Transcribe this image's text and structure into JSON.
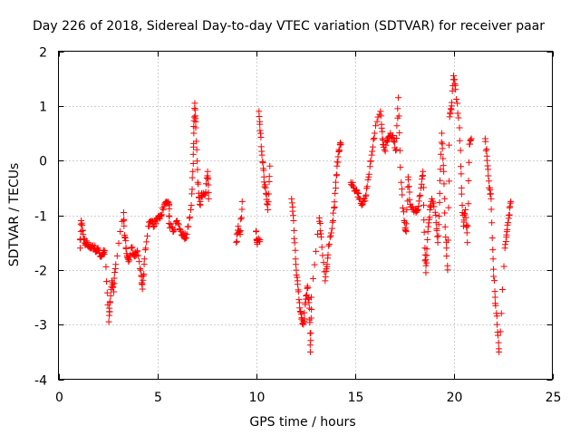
{
  "chart_data": {
    "type": "scatter",
    "title": "Day 226 of 2018, Sidereal Day-to-day VTEC variation (SDTVAR) for receiver paar",
    "xlabel": "GPS time / hours",
    "ylabel": "SDTVAR / TECUs",
    "xlim": [
      0,
      25
    ],
    "ylim": [
      -4,
      2
    ],
    "x_ticks": [
      0,
      5,
      10,
      15,
      20,
      25
    ],
    "x_tick_labels": [
      "0",
      "5",
      "10",
      "15",
      "20",
      "25"
    ],
    "y_ticks": [
      -4,
      -3,
      -2,
      -1,
      0,
      1,
      2
    ],
    "y_tick_labels": [
      "-4",
      "-3",
      "-2",
      "-1",
      "0",
      "1",
      "2"
    ],
    "grid": true,
    "marker": "plus",
    "color": "#ff0000",
    "segments": [
      [
        1.1,
        -1.6
      ],
      [
        1.15,
        -1.1
      ],
      [
        1.25,
        -1.35
      ],
      [
        1.35,
        -1.55
      ],
      [
        1.45,
        -1.5
      ],
      [
        1.6,
        -1.6
      ],
      [
        1.75,
        -1.55
      ],
      [
        1.9,
        -1.65
      ],
      [
        2.0,
        -1.6
      ],
      [
        2.1,
        -1.75
      ],
      [
        2.25,
        -1.7
      ],
      [
        2.35,
        -1.65
      ],
      [
        2.55,
        -2.95
      ],
      [
        2.6,
        -2.6
      ],
      [
        2.7,
        -2.2
      ],
      [
        2.8,
        -2.4
      ],
      [
        2.9,
        -1.9
      ],
      [
        3.3,
        -0.95
      ],
      [
        3.35,
        -1.4
      ],
      [
        3.45,
        -1.7
      ],
      [
        3.55,
        -1.85
      ],
      [
        3.7,
        -1.6
      ],
      [
        3.85,
        -1.75
      ],
      [
        4.0,
        -1.65
      ],
      [
        4.2,
        -2.1
      ],
      [
        4.25,
        -2.35
      ],
      [
        4.35,
        -1.8
      ],
      [
        4.55,
        -1.2
      ],
      [
        4.7,
        -1.1
      ],
      [
        4.85,
        -1.2
      ],
      [
        5.0,
        -1.05
      ],
      [
        5.15,
        -1.0
      ],
      [
        5.3,
        -0.9
      ],
      [
        5.45,
        -0.75
      ],
      [
        5.6,
        -0.8
      ],
      [
        5.6,
        -1.15
      ],
      [
        5.8,
        -1.3
      ],
      [
        6.0,
        -1.1
      ],
      [
        6.2,
        -1.3
      ],
      [
        6.35,
        -1.4
      ],
      [
        6.5,
        -1.35
      ],
      [
        6.7,
        -0.9
      ],
      [
        6.8,
        -0.2
      ],
      [
        6.85,
        0.5
      ],
      [
        6.9,
        1.05
      ],
      [
        6.95,
        0.6
      ],
      [
        7.05,
        -0.4
      ],
      [
        7.15,
        -0.8
      ],
      [
        7.25,
        -0.6
      ],
      [
        7.45,
        -0.6
      ],
      [
        7.55,
        -0.2
      ],
      [
        7.6,
        -0.7
      ],
      [
        9.0,
        -1.5
      ],
      [
        9.1,
        -1.2
      ],
      [
        9.2,
        -1.35
      ],
      [
        9.3,
        -0.75
      ],
      [
        10.0,
        -1.3
      ],
      [
        10.05,
        -1.5
      ],
      [
        10.2,
        -1.45
      ],
      [
        10.15,
        0.9
      ],
      [
        10.2,
        0.55
      ],
      [
        10.3,
        0.1
      ],
      [
        10.4,
        -0.3
      ],
      [
        10.5,
        -0.6
      ],
      [
        10.6,
        -0.9
      ],
      [
        10.7,
        -0.1
      ],
      [
        11.8,
        -0.7
      ],
      [
        11.9,
        -1.1
      ],
      [
        12.0,
        -1.8
      ],
      [
        12.1,
        -2.2
      ],
      [
        12.2,
        -2.6
      ],
      [
        12.3,
        -2.9
      ],
      [
        12.4,
        -3.0
      ],
      [
        12.5,
        -2.6
      ],
      [
        12.6,
        -2.3
      ],
      [
        12.7,
        -2.7
      ],
      [
        12.75,
        -3.5
      ],
      [
        12.8,
        -2.5
      ],
      [
        13.2,
        -1.05
      ],
      [
        13.3,
        -1.4
      ],
      [
        13.5,
        -2.2
      ],
      [
        13.6,
        -1.9
      ],
      [
        13.75,
        -1.4
      ],
      [
        13.9,
        -1.1
      ],
      [
        14.0,
        -0.6
      ],
      [
        14.1,
        -0.1
      ],
      [
        14.2,
        0.2
      ],
      [
        14.3,
        0.3
      ],
      [
        14.8,
        -0.4
      ],
      [
        14.95,
        -0.5
      ],
      [
        15.1,
        -0.55
      ],
      [
        15.25,
        -0.7
      ],
      [
        15.4,
        -0.8
      ],
      [
        15.55,
        -0.65
      ],
      [
        15.7,
        -0.3
      ],
      [
        15.85,
        0.1
      ],
      [
        16.0,
        0.5
      ],
      [
        16.3,
        0.9
      ],
      [
        16.4,
        0.4
      ],
      [
        16.5,
        0.2
      ],
      [
        16.65,
        0.35
      ],
      [
        16.8,
        0.5
      ],
      [
        16.95,
        0.4
      ],
      [
        17.1,
        0.2
      ],
      [
        17.2,
        1.15
      ],
      [
        17.35,
        -0.4
      ],
      [
        17.5,
        -1.1
      ],
      [
        17.6,
        -1.3
      ],
      [
        17.7,
        -0.3
      ],
      [
        17.8,
        -0.8
      ],
      [
        17.95,
        -0.9
      ],
      [
        18.1,
        -0.95
      ],
      [
        18.2,
        -0.9
      ],
      [
        18.35,
        -0.5
      ],
      [
        18.45,
        -0.2
      ],
      [
        18.55,
        -1.6
      ],
      [
        18.6,
        -2.05
      ],
      [
        18.7,
        -1.3
      ],
      [
        18.8,
        -0.9
      ],
      [
        18.9,
        -0.7
      ],
      [
        19.1,
        -1.0
      ],
      [
        19.2,
        -1.5
      ],
      [
        19.3,
        -0.6
      ],
      [
        19.4,
        0.5
      ],
      [
        19.5,
        -0.2
      ],
      [
        19.6,
        -1.4
      ],
      [
        19.7,
        -2.0
      ],
      [
        19.8,
        0.8
      ],
      [
        19.9,
        1.0
      ],
      [
        20.0,
        1.55
      ],
      [
        20.1,
        1.3
      ],
      [
        20.3,
        0.6
      ],
      [
        20.4,
        -0.5
      ],
      [
        20.5,
        -1.2
      ],
      [
        20.6,
        -0.9
      ],
      [
        20.7,
        -1.5
      ],
      [
        20.8,
        0.3
      ],
      [
        20.9,
        0.4
      ],
      [
        21.6,
        0.4
      ],
      [
        21.7,
        0.0
      ],
      [
        21.8,
        -0.5
      ],
      [
        21.9,
        -0.7
      ],
      [
        22.0,
        -1.8
      ],
      [
        22.1,
        -2.5
      ],
      [
        22.2,
        -3.0
      ],
      [
        22.3,
        -3.5
      ],
      [
        22.6,
        -1.6
      ],
      [
        22.7,
        -1.3
      ],
      [
        22.8,
        -1.0
      ],
      [
        22.9,
        -0.75
      ]
    ]
  }
}
